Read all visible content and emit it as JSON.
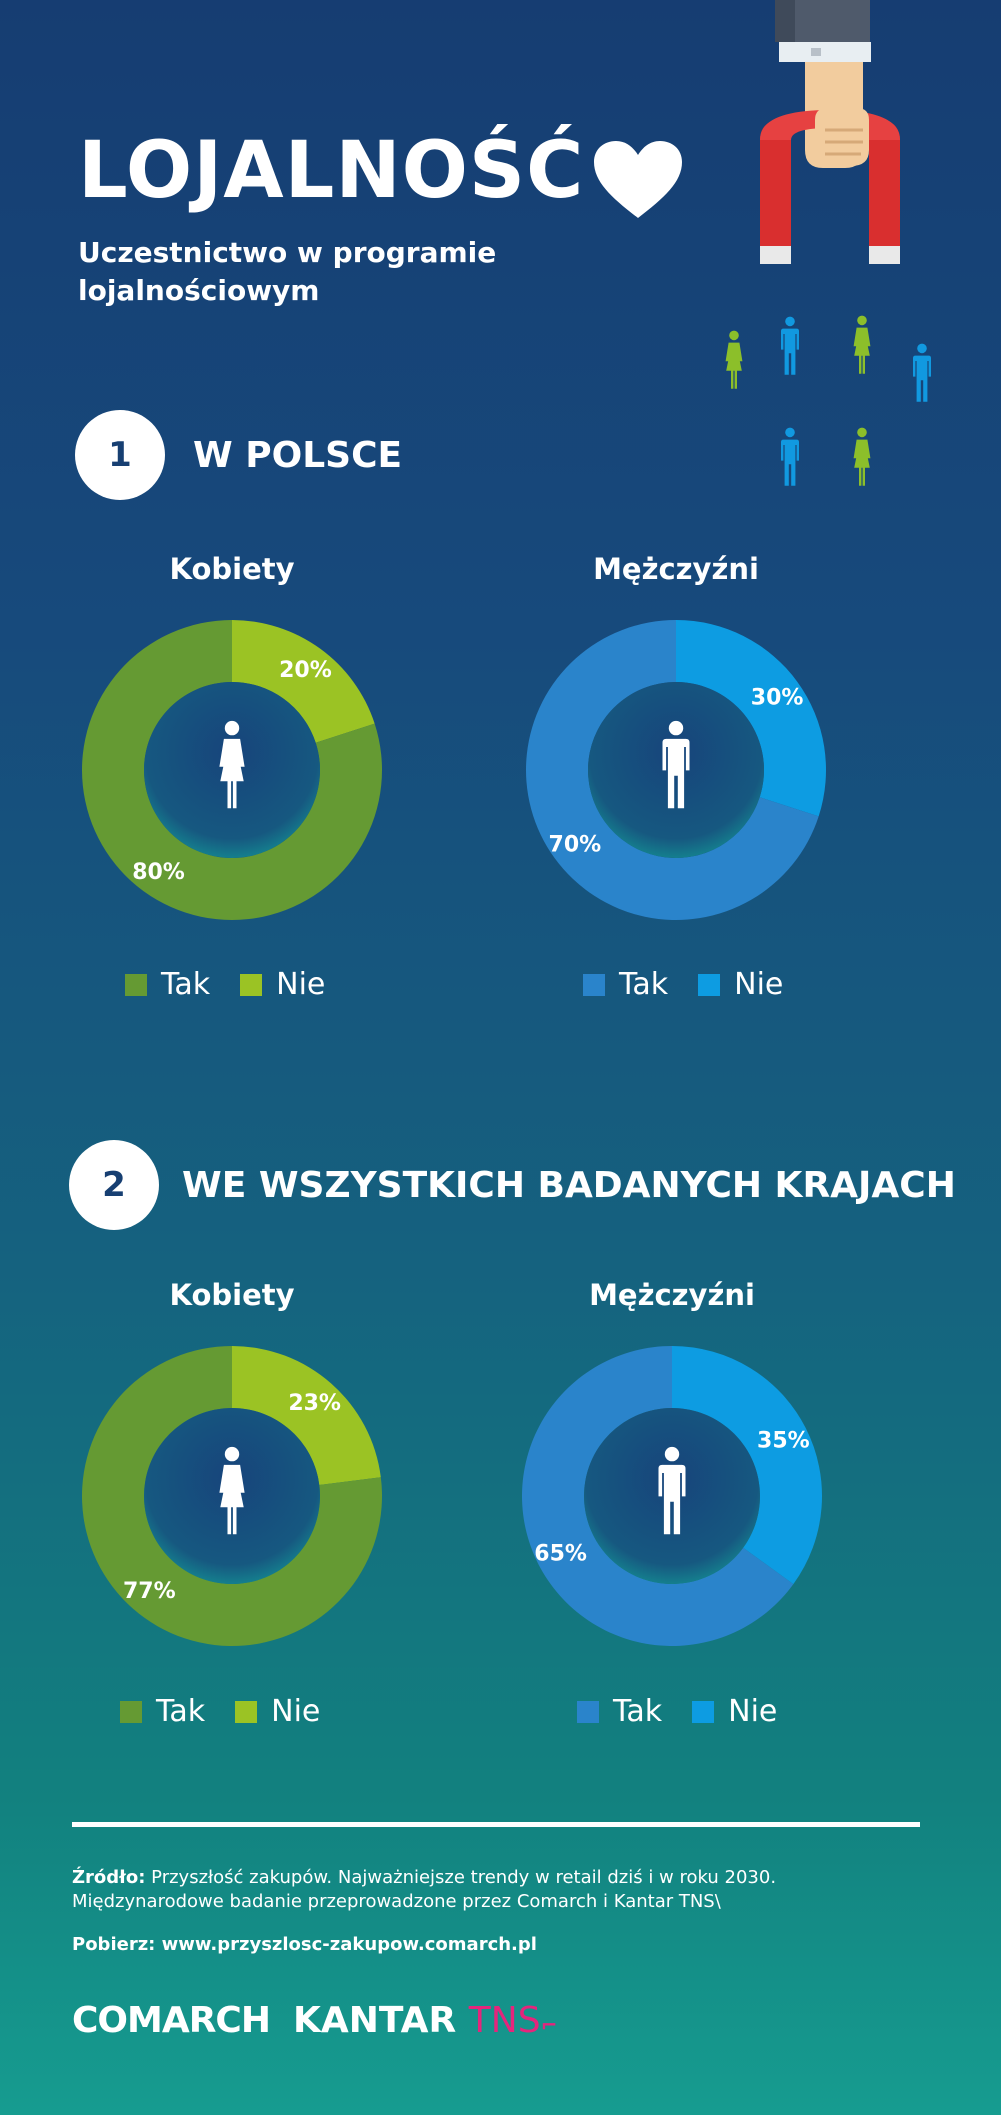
{
  "header": {
    "title": "LOJALNOŚĆ",
    "subtitle": "Uczestnictwo w programie lojalnościowym"
  },
  "colors": {
    "women_tak": "#659a33",
    "women_nie": "#9bc324",
    "men_tak": "#2a84cb",
    "men_nie": "#0d9ce2",
    "woman_icon": "#8cbf2a",
    "man_icon": "#1199e0",
    "accent_pink": "#e4257c"
  },
  "icons": {
    "heart": "heart-icon",
    "magnet": "magnet-hand-icon",
    "woman": "woman-icon",
    "man": "man-icon"
  },
  "sections": [
    {
      "number": "1",
      "title": "W POLSCE"
    },
    {
      "number": "2",
      "title": "WE WSZYSTKICH BADANYCH KRAJACH"
    }
  ],
  "chart_data": [
    {
      "type": "pie",
      "title": "Kobiety",
      "categories": [
        "Tak",
        "Nie"
      ],
      "values": [
        80,
        20
      ],
      "labels": [
        "80%",
        "20%"
      ],
      "legend": [
        "Tak",
        "Nie"
      ]
    },
    {
      "type": "pie",
      "title": "Mężczyźni",
      "categories": [
        "Tak",
        "Nie"
      ],
      "values": [
        70,
        30
      ],
      "labels": [
        "70%",
        "30%"
      ],
      "legend": [
        "Tak",
        "Nie"
      ]
    },
    {
      "type": "pie",
      "title": "Kobiety",
      "categories": [
        "Tak",
        "Nie"
      ],
      "values": [
        77,
        23
      ],
      "labels": [
        "77%",
        "23%"
      ],
      "legend": [
        "Tak",
        "Nie"
      ]
    },
    {
      "type": "pie",
      "title": "Mężczyźni",
      "categories": [
        "Tak",
        "Nie"
      ],
      "values": [
        65,
        35
      ],
      "labels": [
        "65%",
        "35%"
      ],
      "legend": [
        "Tak",
        "Nie"
      ]
    }
  ],
  "footer": {
    "source_label": "Źródło:",
    "source_text": "Przyszłość zakupów. Najważniejsze trendy w retail dziś i w roku 2030. Międzynarodowe badanie przeprowadzone przez Comarch i Kantar TNS\\",
    "download_label": "Pobierz:",
    "download_url": "www.przyszlosc-zakupow.comarch.pl",
    "logo_comarch": "COMARCH",
    "logo_kantar": "KANTAR",
    "logo_tns": "TNS"
  }
}
